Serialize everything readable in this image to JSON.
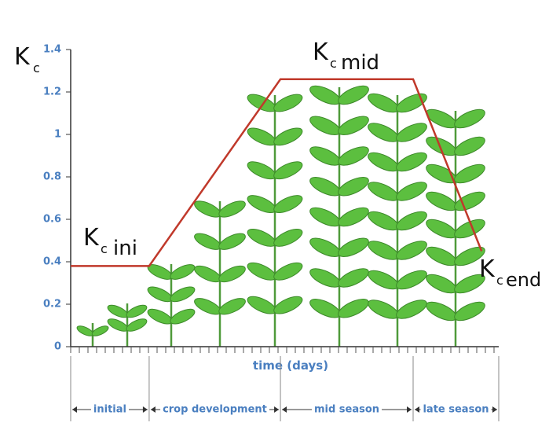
{
  "chart_data": {
    "type": "line",
    "y_label": {
      "main": "K",
      "sub": "c"
    },
    "x_label": "time (days)",
    "x": [
      0,
      27.5,
      73.5,
      120,
      144
    ],
    "values": [
      0.38,
      0.38,
      1.26,
      1.26,
      0.45
    ],
    "color": "#c0392b",
    "xlim": [
      0,
      150
    ],
    "ylim": [
      0,
      1.4
    ],
    "yticks": [
      0,
      0.2,
      0.4,
      0.6,
      0.8,
      1,
      1.2,
      1.4
    ],
    "stage_bounds": [
      0,
      27.5,
      73.5,
      120,
      150
    ],
    "stages": [
      "initial",
      "crop development",
      "mid season",
      "late season"
    ],
    "annotations": [
      {
        "main": "K",
        "sub": "c",
        "text": "ini"
      },
      {
        "main": "K",
        "sub": "c",
        "text": "mid"
      },
      {
        "main": "K",
        "sub": "c",
        "text": "end"
      }
    ]
  }
}
